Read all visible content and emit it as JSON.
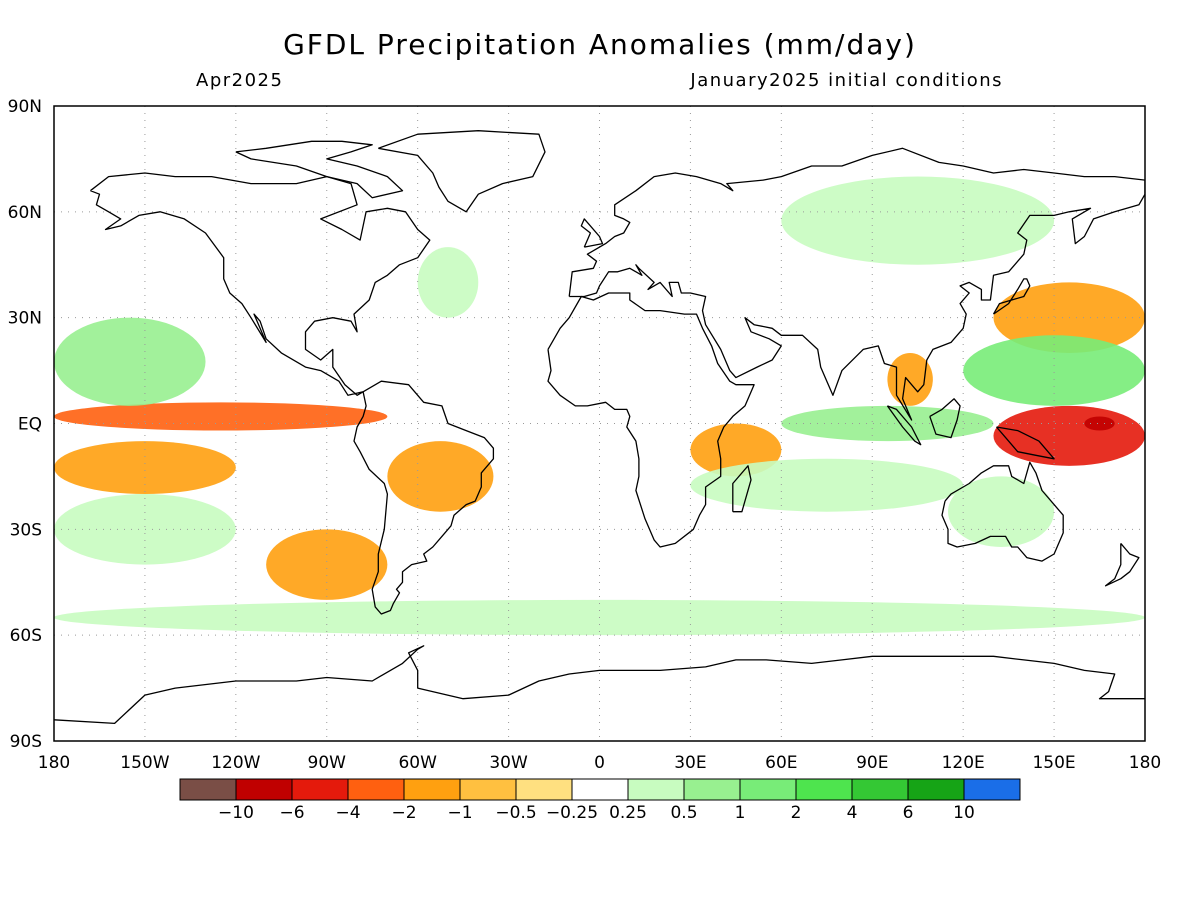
{
  "title": "GFDL Precipitation Anomalies (mm/day)",
  "valid_month": "Apr2025",
  "init_conditions": "January2025 initial conditions",
  "map": {
    "projection": "equirectangular",
    "lon_range": [
      -180,
      180
    ],
    "lat_range": [
      -90,
      90
    ],
    "grid": "dotted",
    "lon_tick_labels": [
      "180",
      "150W",
      "120W",
      "90W",
      "60W",
      "30W",
      "0",
      "30E",
      "60E",
      "90E",
      "120E",
      "150E",
      "180"
    ],
    "lat_tick_labels": [
      "90N",
      "60N",
      "30N",
      "EQ",
      "30S",
      "60S",
      "90S"
    ],
    "coastline_color": "#000000"
  },
  "colorbar": {
    "colors": [
      "#7a4e46",
      "#c00000",
      "#e41a0c",
      "#ff6010",
      "#ffa010",
      "#ffc040",
      "#ffe080",
      "#ffffff",
      "#c8fcc0",
      "#98f090",
      "#78ec78",
      "#4ee44e",
      "#34c834",
      "#16a416",
      "#1a6ee8"
    ],
    "labels": [
      "−10",
      "−6",
      "−4",
      "−2",
      "−1",
      "−0.5",
      "−0.25",
      "0.25",
      "0.5",
      "1",
      "2",
      "4",
      "6",
      "10"
    ]
  },
  "chart_data": {
    "type": "heatmap",
    "title": "GFDL Precipitation Anomalies (mm/day)",
    "subtitle_left": "Apr2025",
    "subtitle_right": "January2025 initial conditions",
    "units": "mm/day",
    "levels": [
      -10,
      -6,
      -4,
      -2,
      -1,
      -0.5,
      -0.25,
      0.25,
      0.5,
      1,
      2,
      4,
      6,
      10
    ],
    "xlim": [
      -180,
      180
    ],
    "ylim": [
      -90,
      90
    ],
    "anomaly_features": [
      {
        "lon": [
          -180,
          -70
        ],
        "lat": [
          -2,
          6
        ],
        "value": -2
      },
      {
        "lon": [
          130,
          180
        ],
        "lat": [
          -12,
          5
        ],
        "value": -4
      },
      {
        "lon": [
          160,
          170
        ],
        "lat": [
          -2,
          2
        ],
        "value": -6
      },
      {
        "lon": [
          -180,
          -120
        ],
        "lat": [
          -20,
          -5
        ],
        "value": -1
      },
      {
        "lon": [
          -70,
          -35
        ],
        "lat": [
          -25,
          -5
        ],
        "value": -1
      },
      {
        "lon": [
          -110,
          -70
        ],
        "lat": [
          -50,
          -30
        ],
        "value": -1
      },
      {
        "lon": [
          30,
          60
        ],
        "lat": [
          -15,
          0
        ],
        "value": -1
      },
      {
        "lon": [
          95,
          110
        ],
        "lat": [
          5,
          20
        ],
        "value": -1
      },
      {
        "lon": [
          130,
          180
        ],
        "lat": [
          20,
          40
        ],
        "value": -1
      },
      {
        "lon": [
          -180,
          -130
        ],
        "lat": [
          5,
          30
        ],
        "value": 1
      },
      {
        "lon": [
          120,
          180
        ],
        "lat": [
          5,
          25
        ],
        "value": 2
      },
      {
        "lon": [
          60,
          130
        ],
        "lat": [
          -5,
          5
        ],
        "value": 1
      },
      {
        "lon": [
          115,
          150
        ],
        "lat": [
          -35,
          -15
        ],
        "value": 0.5
      },
      {
        "lon": [
          -180,
          -120
        ],
        "lat": [
          -40,
          -20
        ],
        "value": 0.5
      },
      {
        "lon": [
          -60,
          -40
        ],
        "lat": [
          30,
          50
        ],
        "value": 0.5
      },
      {
        "lon": [
          60,
          150
        ],
        "lat": [
          45,
          70
        ],
        "value": 0.5
      },
      {
        "lon": [
          30,
          120
        ],
        "lat": [
          -25,
          -10
        ],
        "value": 0.5
      },
      {
        "lon": [
          -180,
          180
        ],
        "lat": [
          -60,
          -50
        ],
        "value": 0.5
      }
    ]
  }
}
